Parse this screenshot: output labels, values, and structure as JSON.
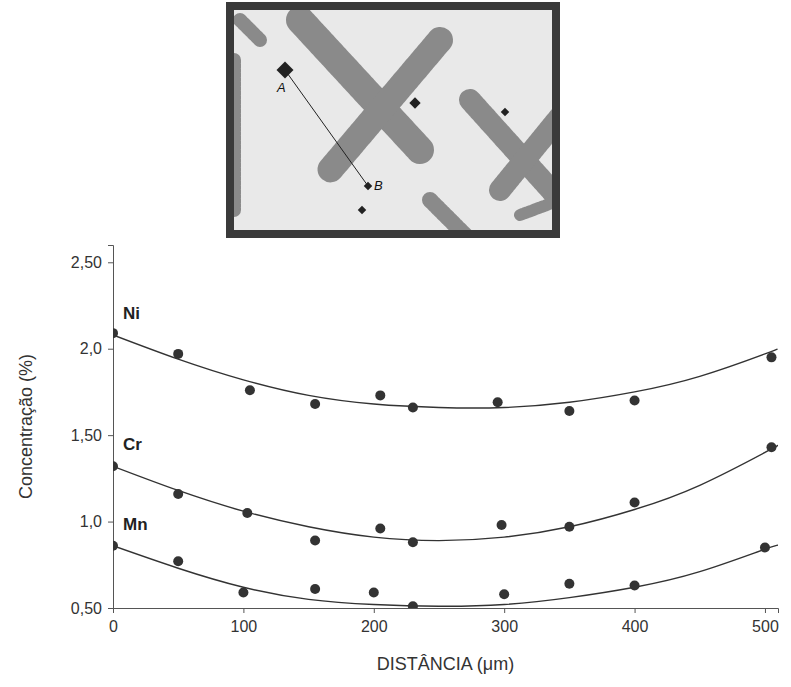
{
  "chart_data": {
    "type": "scatter",
    "x_label": "DISTÂNCIA (μm)",
    "y_label": "Concentração (%)",
    "annotations": [
      "A",
      "B"
    ],
    "xlim": [
      0,
      510
    ],
    "xticks": [
      0,
      100,
      200,
      300,
      400,
      500
    ],
    "ylim": [
      0.5,
      2.6
    ],
    "yticks": [
      {
        "value": 0.5,
        "label": "0,50"
      },
      {
        "value": 1.0,
        "label": "1,0"
      },
      {
        "value": 1.5,
        "label": "1,50"
      },
      {
        "value": 2.0,
        "label": "2,0"
      },
      {
        "value": 2.5,
        "label": "2,50"
      }
    ],
    "grid": false,
    "series": [
      {
        "name": "Ni",
        "color": "#333333",
        "marker": "circle",
        "line_style": "solid",
        "x": [
          0,
          50,
          105,
          155,
          205,
          230,
          295,
          350,
          400,
          505
        ],
        "values": [
          2.09,
          1.97,
          1.76,
          1.68,
          1.73,
          1.66,
          1.69,
          1.64,
          1.7,
          1.95
        ],
        "fit_x": [
          0,
          50,
          100,
          150,
          200,
          250,
          300,
          350,
          400,
          450,
          500,
          510
        ],
        "fit": [
          2.08,
          1.94,
          1.82,
          1.73,
          1.68,
          1.66,
          1.66,
          1.69,
          1.75,
          1.84,
          1.97,
          2.0
        ]
      },
      {
        "name": "Cr",
        "color": "#333333",
        "marker": "circle",
        "line_style": "solid",
        "x": [
          0,
          50,
          103,
          155,
          205,
          230,
          298,
          350,
          400,
          505
        ],
        "values": [
          1.32,
          1.16,
          1.05,
          0.89,
          0.96,
          0.88,
          0.98,
          0.97,
          1.11,
          1.43
        ],
        "fit_x": [
          0,
          50,
          100,
          150,
          200,
          250,
          300,
          350,
          400,
          450,
          500,
          510
        ],
        "fit": [
          1.32,
          1.18,
          1.06,
          0.97,
          0.91,
          0.89,
          0.91,
          0.97,
          1.07,
          1.21,
          1.4,
          1.44
        ]
      },
      {
        "name": "Mn",
        "color": "#333333",
        "marker": "circle",
        "line_style": "solid",
        "x": [
          0,
          50,
          100,
          155,
          200,
          230,
          300,
          350,
          400,
          500
        ],
        "values": [
          0.86,
          0.77,
          0.59,
          0.61,
          0.59,
          0.51,
          0.58,
          0.64,
          0.63,
          0.85
        ],
        "fit_x": [
          0,
          50,
          100,
          150,
          200,
          250,
          300,
          350,
          400,
          450,
          500,
          510
        ],
        "fit": [
          0.86,
          0.73,
          0.62,
          0.55,
          0.52,
          0.51,
          0.52,
          0.56,
          0.62,
          0.71,
          0.84,
          0.86
        ]
      }
    ]
  }
}
